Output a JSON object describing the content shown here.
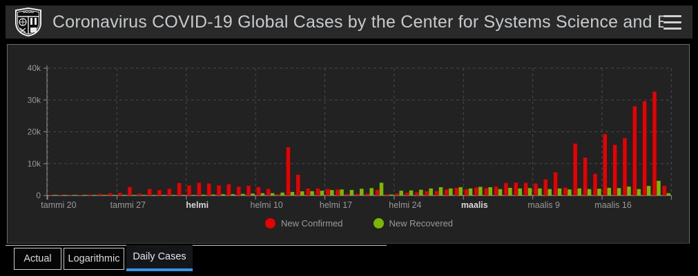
{
  "header": {
    "title": "Coronavirus COVID-19 Global Cases by the Center for Systems Science and E…",
    "logo": "johns-hopkins-shield",
    "menu_icon": "hamburger"
  },
  "tabs": [
    {
      "label": "Actual",
      "active": false
    },
    {
      "label": "Logarithmic",
      "active": false
    },
    {
      "label": "Daily Cases",
      "active": true
    }
  ],
  "legend": [
    {
      "label": "New Confirmed",
      "color": "#E60000"
    },
    {
      "label": "New Recovered",
      "color": "#7AB800"
    }
  ],
  "colors": {
    "page_bg": "#000000",
    "header_bg": "#292929",
    "panel_bg": "#222222",
    "confirmed": "#E60000",
    "recovered": "#7AB800",
    "tab_accent": "#3396E8",
    "grid": "#4A4A4A",
    "axis": "#909090",
    "tick_label": "#999999",
    "tick_label_bold": "#D8D8D8"
  },
  "chart_data": {
    "type": "bar",
    "title": "Daily Cases",
    "xlabel": "",
    "ylabel": "",
    "ylim": [
      0,
      40000
    ],
    "grid": "dashed",
    "legend_position": "bottom",
    "x": [
      "tammi 20",
      "tammi 21",
      "tammi 22",
      "tammi 23",
      "tammi 24",
      "tammi 25",
      "tammi 26",
      "tammi 27",
      "tammi 28",
      "tammi 29",
      "tammi 30",
      "tammi 31",
      "helmi 1",
      "helmi 2",
      "helmi 3",
      "helmi 4",
      "helmi 5",
      "helmi 6",
      "helmi 7",
      "helmi 8",
      "helmi 9",
      "helmi 10",
      "helmi 11",
      "helmi 12",
      "helmi 13",
      "helmi 14",
      "helmi 15",
      "helmi 16",
      "helmi 17",
      "helmi 18",
      "helmi 19",
      "helmi 20",
      "helmi 21",
      "helmi 22",
      "helmi 23",
      "helmi 24",
      "helmi 25",
      "helmi 26",
      "helmi 27",
      "helmi 28",
      "helmi 29",
      "maalis 1",
      "maalis 2",
      "maalis 3",
      "maalis 4",
      "maalis 5",
      "maalis 6",
      "maalis 7",
      "maalis 8",
      "maalis 9",
      "maalis 10",
      "maalis 11",
      "maalis 12",
      "maalis 13",
      "maalis 14",
      "maalis 15",
      "maalis 16",
      "maalis 17",
      "maalis 18",
      "maalis 19",
      "maalis 20",
      "maalis 21",
      "maalis 22"
    ],
    "series": [
      {
        "name": "New Confirmed",
        "color": "#E60000",
        "values": [
          100,
          150,
          150,
          100,
          290,
          490,
          680,
          810,
          2650,
          590,
          2070,
          1690,
          2110,
          3900,
          3100,
          4000,
          3740,
          3180,
          3570,
          2730,
          3030,
          2610,
          2070,
          420,
          15150,
          6520,
          2150,
          2190,
          2040,
          1880,
          500,
          560,
          620,
          1760,
          390,
          600,
          850,
          980,
          1360,
          1370,
          1890,
          2360,
          1940,
          2530,
          2280,
          2760,
          3900,
          4040,
          3970,
          3770,
          5030,
          7270,
          2480,
          16300,
          11900,
          6800,
          19300,
          15900,
          18000,
          28000,
          29600,
          32600,
          3000
        ]
      },
      {
        "name": "New Recovered",
        "color": "#7AB800",
        "values": [
          30,
          30,
          30,
          30,
          40,
          40,
          50,
          60,
          30,
          40,
          70,
          80,
          150,
          160,
          160,
          260,
          300,
          400,
          420,
          510,
          600,
          700,
          720,
          900,
          1100,
          1300,
          1350,
          1500,
          1700,
          1900,
          1750,
          2100,
          2300,
          4000,
          300,
          1500,
          1600,
          1800,
          2200,
          2600,
          2200,
          2600,
          2200,
          2700,
          2600,
          2000,
          2400,
          2200,
          2300,
          2200,
          2000,
          2200,
          1900,
          2200,
          2000,
          2100,
          2400,
          2300,
          2800,
          2000,
          3000,
          4600,
          700
        ]
      }
    ],
    "yticks": [
      {
        "value": 0,
        "label": "0"
      },
      {
        "value": 10000,
        "label": "10k"
      },
      {
        "value": 20000,
        "label": "20k"
      },
      {
        "value": 30000,
        "label": "30k"
      },
      {
        "value": 40000,
        "label": "40k"
      }
    ],
    "xticks": [
      {
        "day": 0,
        "label": "tammi 20",
        "bold": false
      },
      {
        "day": 7,
        "label": "tammi 27",
        "bold": false
      },
      {
        "day": 14,
        "label": "helmi",
        "bold": true
      },
      {
        "day": 21,
        "label": "helmi 10",
        "bold": false
      },
      {
        "day": 28,
        "label": "helmi 17",
        "bold": false
      },
      {
        "day": 35,
        "label": "helmi 24",
        "bold": false
      },
      {
        "day": 42,
        "label": "maalis",
        "bold": true
      },
      {
        "day": 49,
        "label": "maalis 9",
        "bold": false
      },
      {
        "day": 56,
        "label": "maalis 16",
        "bold": false
      }
    ]
  }
}
